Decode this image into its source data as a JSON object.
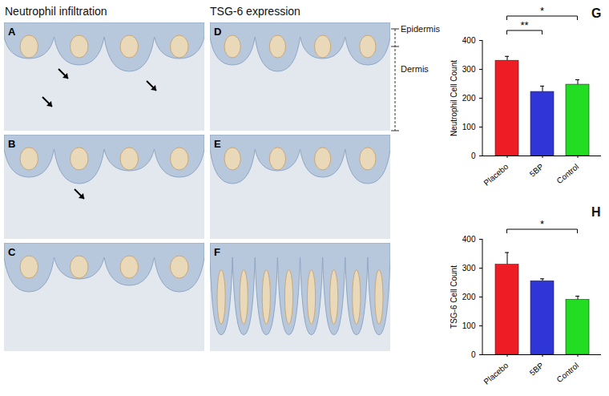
{
  "figure": {
    "columns": [
      "Neutrophil infiltration",
      "TSG-6 expression"
    ],
    "panels_left": [
      "A",
      "B",
      "C"
    ],
    "panels_mid": [
      "D",
      "E",
      "F"
    ],
    "layers": [
      "Epidermis",
      "Dermis"
    ]
  },
  "chart_data": [
    {
      "type": "bar",
      "title": "G",
      "categories": [
        "Placebo",
        "5BP",
        "Control"
      ],
      "values": [
        330,
        222,
        247
      ],
      "errors": [
        15,
        20,
        17
      ],
      "colors": [
        "#ee1c25",
        "#2f35d6",
        "#22dd22"
      ],
      "ylabel": "Neutrophil Cell Count",
      "ylim": [
        0,
        400
      ],
      "yticks": [
        0,
        100,
        200,
        300,
        400
      ],
      "significance": [
        {
          "from": "Placebo",
          "to": "5BP",
          "label": "**"
        },
        {
          "from": "Placebo",
          "to": "Control",
          "label": "*"
        }
      ]
    },
    {
      "type": "bar",
      "title": "H",
      "categories": [
        "Placebo",
        "5BP",
        "Control"
      ],
      "values": [
        312,
        255,
        190
      ],
      "errors": [
        42,
        8,
        13
      ],
      "colors": [
        "#ee1c25",
        "#2f35d6",
        "#22dd22"
      ],
      "ylabel": "TSG-6 Cell Count",
      "ylim": [
        0,
        400
      ],
      "yticks": [
        0,
        100,
        200,
        300,
        400
      ],
      "significance": [
        {
          "from": "Placebo",
          "to": "Control",
          "label": "*"
        }
      ]
    }
  ]
}
